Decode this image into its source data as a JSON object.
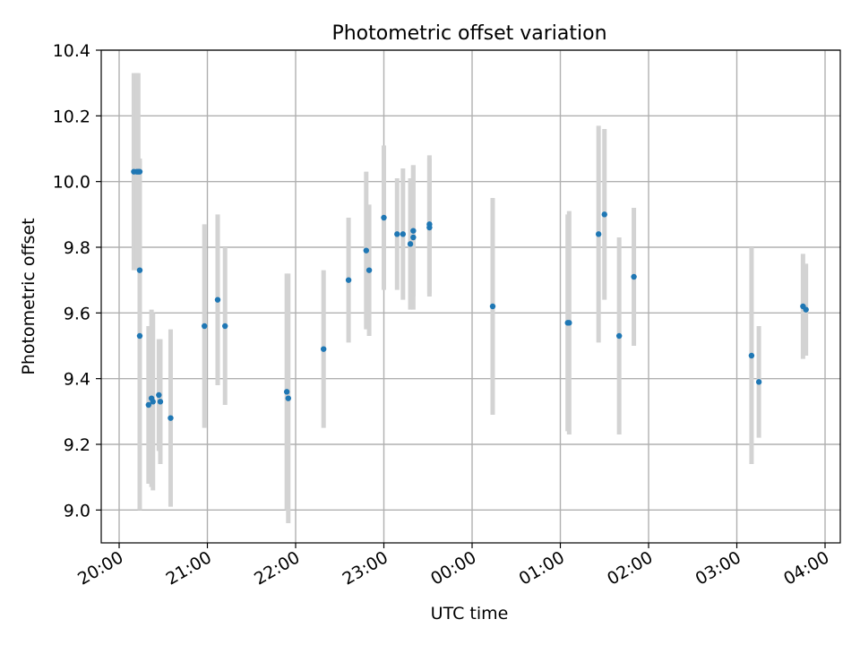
{
  "chart_data": {
    "type": "scatter",
    "title": "Photometric offset variation",
    "xlabel": "UTC time",
    "ylabel": "Photometric offset",
    "ylim": [
      8.9,
      10.4
    ],
    "xlim": [
      "20:00",
      "04:00"
    ],
    "x_unit": "UTC time",
    "x_ticks": [
      "20:00",
      "21:00",
      "22:00",
      "23:00",
      "00:00",
      "01:00",
      "02:00",
      "03:00",
      "04:00"
    ],
    "y_ticks": [
      "9.0",
      "9.2",
      "9.4",
      "9.6",
      "9.8",
      "10.0",
      "10.2",
      "10.4"
    ],
    "grid": true,
    "colors": {
      "points": "#1f77b4",
      "error_bars": "#d3d3d3",
      "grid": "#b0b0b0",
      "axes": "#000000"
    },
    "points": [
      {
        "x": "20:10",
        "y": 10.03,
        "yerr": 0.3
      },
      {
        "x": "20:12",
        "y": 10.03,
        "yerr": 0.3
      },
      {
        "x": "20:13",
        "y": 10.03,
        "yerr": 0.3
      },
      {
        "x": "20:14",
        "y": 10.03,
        "yerr": 0.04
      },
      {
        "x": "20:14",
        "y": 9.73,
        "yerr": 0.33
      },
      {
        "x": "20:14",
        "y": 9.53,
        "yerr": 0.53
      },
      {
        "x": "20:20",
        "y": 9.32,
        "yerr": 0.24
      },
      {
        "x": "20:22",
        "y": 9.34,
        "yerr": 0.27
      },
      {
        "x": "20:23",
        "y": 9.33,
        "yerr": 0.27
      },
      {
        "x": "20:27",
        "y": 9.35,
        "yerr": 0.17
      },
      {
        "x": "20:28",
        "y": 9.33,
        "yerr": 0.19
      },
      {
        "x": "20:35",
        "y": 9.28,
        "yerr": 0.27
      },
      {
        "x": "20:58",
        "y": 9.56,
        "yerr": 0.31
      },
      {
        "x": "21:07",
        "y": 9.64,
        "yerr": 0.26
      },
      {
        "x": "21:12",
        "y": 9.56,
        "yerr": 0.24
      },
      {
        "x": "21:54",
        "y": 9.36,
        "yerr": 0.36
      },
      {
        "x": "21:55",
        "y": 9.34,
        "yerr": 0.38
      },
      {
        "x": "22:19",
        "y": 9.49,
        "yerr": 0.24
      },
      {
        "x": "22:36",
        "y": 9.7,
        "yerr": 0.19
      },
      {
        "x": "22:48",
        "y": 9.79,
        "yerr": 0.24
      },
      {
        "x": "22:50",
        "y": 9.73,
        "yerr": 0.2
      },
      {
        "x": "23:00",
        "y": 9.89,
        "yerr": 0.22
      },
      {
        "x": "23:09",
        "y": 9.84,
        "yerr": 0.17
      },
      {
        "x": "23:13",
        "y": 9.84,
        "yerr": 0.2
      },
      {
        "x": "23:18",
        "y": 9.81,
        "yerr": 0.2
      },
      {
        "x": "23:20",
        "y": 9.83,
        "yerr": 0.22
      },
      {
        "x": "23:20",
        "y": 9.85,
        "yerr": 0.2
      },
      {
        "x": "23:31",
        "y": 9.87,
        "yerr": 0.21
      },
      {
        "x": "23:31",
        "y": 9.86,
        "yerr": 0.21
      },
      {
        "x": "00:14",
        "y": 9.62,
        "yerr": 0.33
      },
      {
        "x": "01:05",
        "y": 9.57,
        "yerr": 0.33
      },
      {
        "x": "01:06",
        "y": 9.57,
        "yerr": 0.34
      },
      {
        "x": "01:26",
        "y": 9.84,
        "yerr": 0.33
      },
      {
        "x": "01:30",
        "y": 9.9,
        "yerr": 0.26
      },
      {
        "x": "01:40",
        "y": 9.53,
        "yerr": 0.3
      },
      {
        "x": "01:50",
        "y": 9.71,
        "yerr": 0.21
      },
      {
        "x": "03:10",
        "y": 9.47,
        "yerr": 0.33
      },
      {
        "x": "03:15",
        "y": 9.39,
        "yerr": 0.17
      },
      {
        "x": "03:45",
        "y": 9.62,
        "yerr": 0.16
      },
      {
        "x": "03:47",
        "y": 9.61,
        "yerr": 0.14
      }
    ]
  }
}
